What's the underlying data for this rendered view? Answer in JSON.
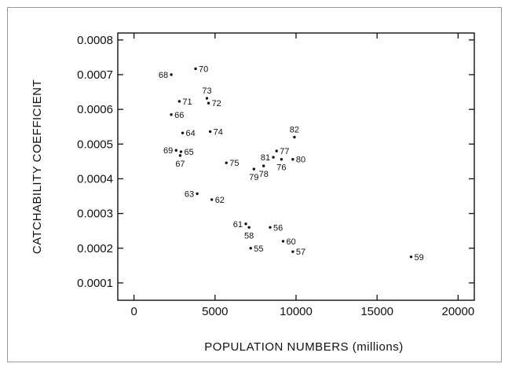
{
  "chart_data": {
    "type": "scatter",
    "xlabel": "POPULATION NUMBERS (millions)",
    "ylabel": "CATCHABILITY COEFFICIENT",
    "xlim": [
      -1000,
      21000
    ],
    "ylim": [
      5e-05,
      0.00082
    ],
    "xticks": [
      0,
      5000,
      10000,
      15000,
      20000
    ],
    "xtick_labels": [
      "0",
      "5000",
      "10000",
      "15000",
      "20000"
    ],
    "yticks": [
      0.0001,
      0.0002,
      0.0003,
      0.0004,
      0.0005,
      0.0006,
      0.0007,
      0.0008
    ],
    "ytick_labels": [
      "0.0001",
      "0.0002",
      "0.0003",
      "0.0004",
      "0.0005",
      "0.0006",
      "0.0007",
      "0.0008"
    ],
    "grid": false,
    "points": [
      {
        "label": "55",
        "x": 7200,
        "y": 0.0002,
        "label_pos": "right"
      },
      {
        "label": "56",
        "x": 8400,
        "y": 0.00026,
        "label_pos": "right"
      },
      {
        "label": "57",
        "x": 9800,
        "y": 0.00019,
        "label_pos": "right"
      },
      {
        "label": "58",
        "x": 7100,
        "y": 0.00026,
        "label_pos": "below"
      },
      {
        "label": "59",
        "x": 17100,
        "y": 0.000175,
        "label_pos": "right"
      },
      {
        "label": "60",
        "x": 9200,
        "y": 0.00022,
        "label_pos": "right"
      },
      {
        "label": "61",
        "x": 6900,
        "y": 0.00027,
        "label_pos": "left"
      },
      {
        "label": "62",
        "x": 4800,
        "y": 0.00034,
        "label_pos": "right"
      },
      {
        "label": "63",
        "x": 3900,
        "y": 0.000357,
        "label_pos": "left"
      },
      {
        "label": "64",
        "x": 3000,
        "y": 0.000532,
        "label_pos": "right"
      },
      {
        "label": "65",
        "x": 2900,
        "y": 0.000478,
        "label_pos": "right"
      },
      {
        "label": "66",
        "x": 2300,
        "y": 0.000585,
        "label_pos": "right"
      },
      {
        "label": "67",
        "x": 2850,
        "y": 0.000467,
        "label_pos": "below"
      },
      {
        "label": "68",
        "x": 2300,
        "y": 0.0007,
        "label_pos": "left"
      },
      {
        "label": "69",
        "x": 2600,
        "y": 0.000482,
        "label_pos": "left"
      },
      {
        "label": "70",
        "x": 3800,
        "y": 0.000717,
        "label_pos": "right"
      },
      {
        "label": "71",
        "x": 2800,
        "y": 0.000623,
        "label_pos": "right"
      },
      {
        "label": "72",
        "x": 4600,
        "y": 0.000618,
        "label_pos": "right"
      },
      {
        "label": "73",
        "x": 4500,
        "y": 0.000632,
        "label_pos": "above"
      },
      {
        "label": "74",
        "x": 4700,
        "y": 0.000536,
        "label_pos": "right"
      },
      {
        "label": "75",
        "x": 5700,
        "y": 0.000446,
        "label_pos": "right"
      },
      {
        "label": "76",
        "x": 9100,
        "y": 0.000456,
        "label_pos": "below"
      },
      {
        "label": "77",
        "x": 8800,
        "y": 0.00048,
        "label_pos": "right"
      },
      {
        "label": "78",
        "x": 8000,
        "y": 0.000437,
        "label_pos": "below"
      },
      {
        "label": "79",
        "x": 7400,
        "y": 0.000428,
        "label_pos": "below"
      },
      {
        "label": "80",
        "x": 9800,
        "y": 0.000456,
        "label_pos": "right"
      },
      {
        "label": "81",
        "x": 8600,
        "y": 0.000462,
        "label_pos": "left"
      },
      {
        "label": "82",
        "x": 9900,
        "y": 0.00052,
        "label_pos": "above"
      }
    ]
  }
}
